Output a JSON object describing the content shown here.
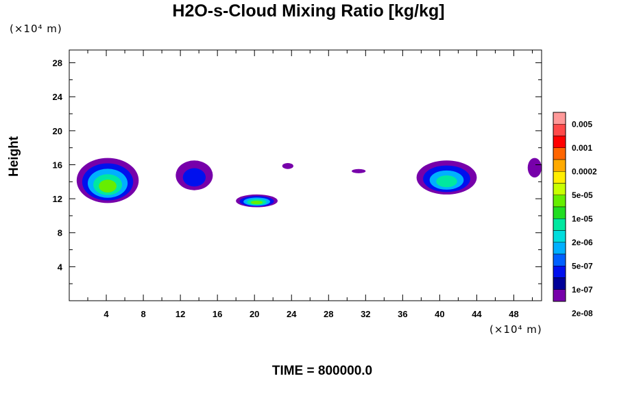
{
  "chart_data": {
    "type": "heatmap",
    "title": "H2O-s-Cloud Mixing Ratio [kg/kg]",
    "xlabel": "",
    "ylabel": "Height",
    "x_unit": "(×10⁴ m)",
    "y_unit": "(×10⁴ m)",
    "xlim": [
      0,
      51
    ],
    "ylim": [
      0,
      29.5
    ],
    "x_ticks": [
      "4",
      "8",
      "12",
      "16",
      "20",
      "24",
      "28",
      "32",
      "36",
      "40",
      "44",
      "48"
    ],
    "y_ticks": [
      "4",
      "8",
      "12",
      "16",
      "20",
      "24",
      "28"
    ],
    "footer": "TIME = 800000.0",
    "colorbar": {
      "levels": [
        "0.005",
        "0.001",
        "0.0002",
        "5e-05",
        "1e-05",
        "2e-06",
        "5e-07",
        "1e-07",
        "2e-08"
      ],
      "colors": [
        "#ff9999",
        "#ff4a4a",
        "#ff0000",
        "#ff6600",
        "#ffaa00",
        "#ffee00",
        "#c8ff00",
        "#66ee00",
        "#22dd22",
        "#00e8a0",
        "#00dddd",
        "#00b0ff",
        "#0060ff",
        "#0010ee",
        "#000099",
        "#7700aa"
      ]
    },
    "cloud_regions": [
      {
        "x": [
          0.8,
          7.5
        ],
        "y": [
          11.5,
          16.8
        ],
        "max_level": "0.0002"
      },
      {
        "x": [
          11.5,
          15.5
        ],
        "y": [
          13.0,
          16.5
        ],
        "max_level": "2e-06"
      },
      {
        "x": [
          18.0,
          22.5
        ],
        "y": [
          11.0,
          12.5
        ],
        "max_level": "0.0002"
      },
      {
        "x": [
          23.0,
          24.2
        ],
        "y": [
          15.5,
          16.2
        ],
        "max_level": "2e-08"
      },
      {
        "x": [
          30.5,
          32.0
        ],
        "y": [
          15.0,
          15.5
        ],
        "max_level": "2e-08"
      },
      {
        "x": [
          37.5,
          44.0
        ],
        "y": [
          12.5,
          16.5
        ],
        "max_level": "5e-05"
      },
      {
        "x": [
          49.5,
          51.0
        ],
        "y": [
          14.5,
          16.8
        ],
        "max_level": "1e-07"
      }
    ]
  }
}
